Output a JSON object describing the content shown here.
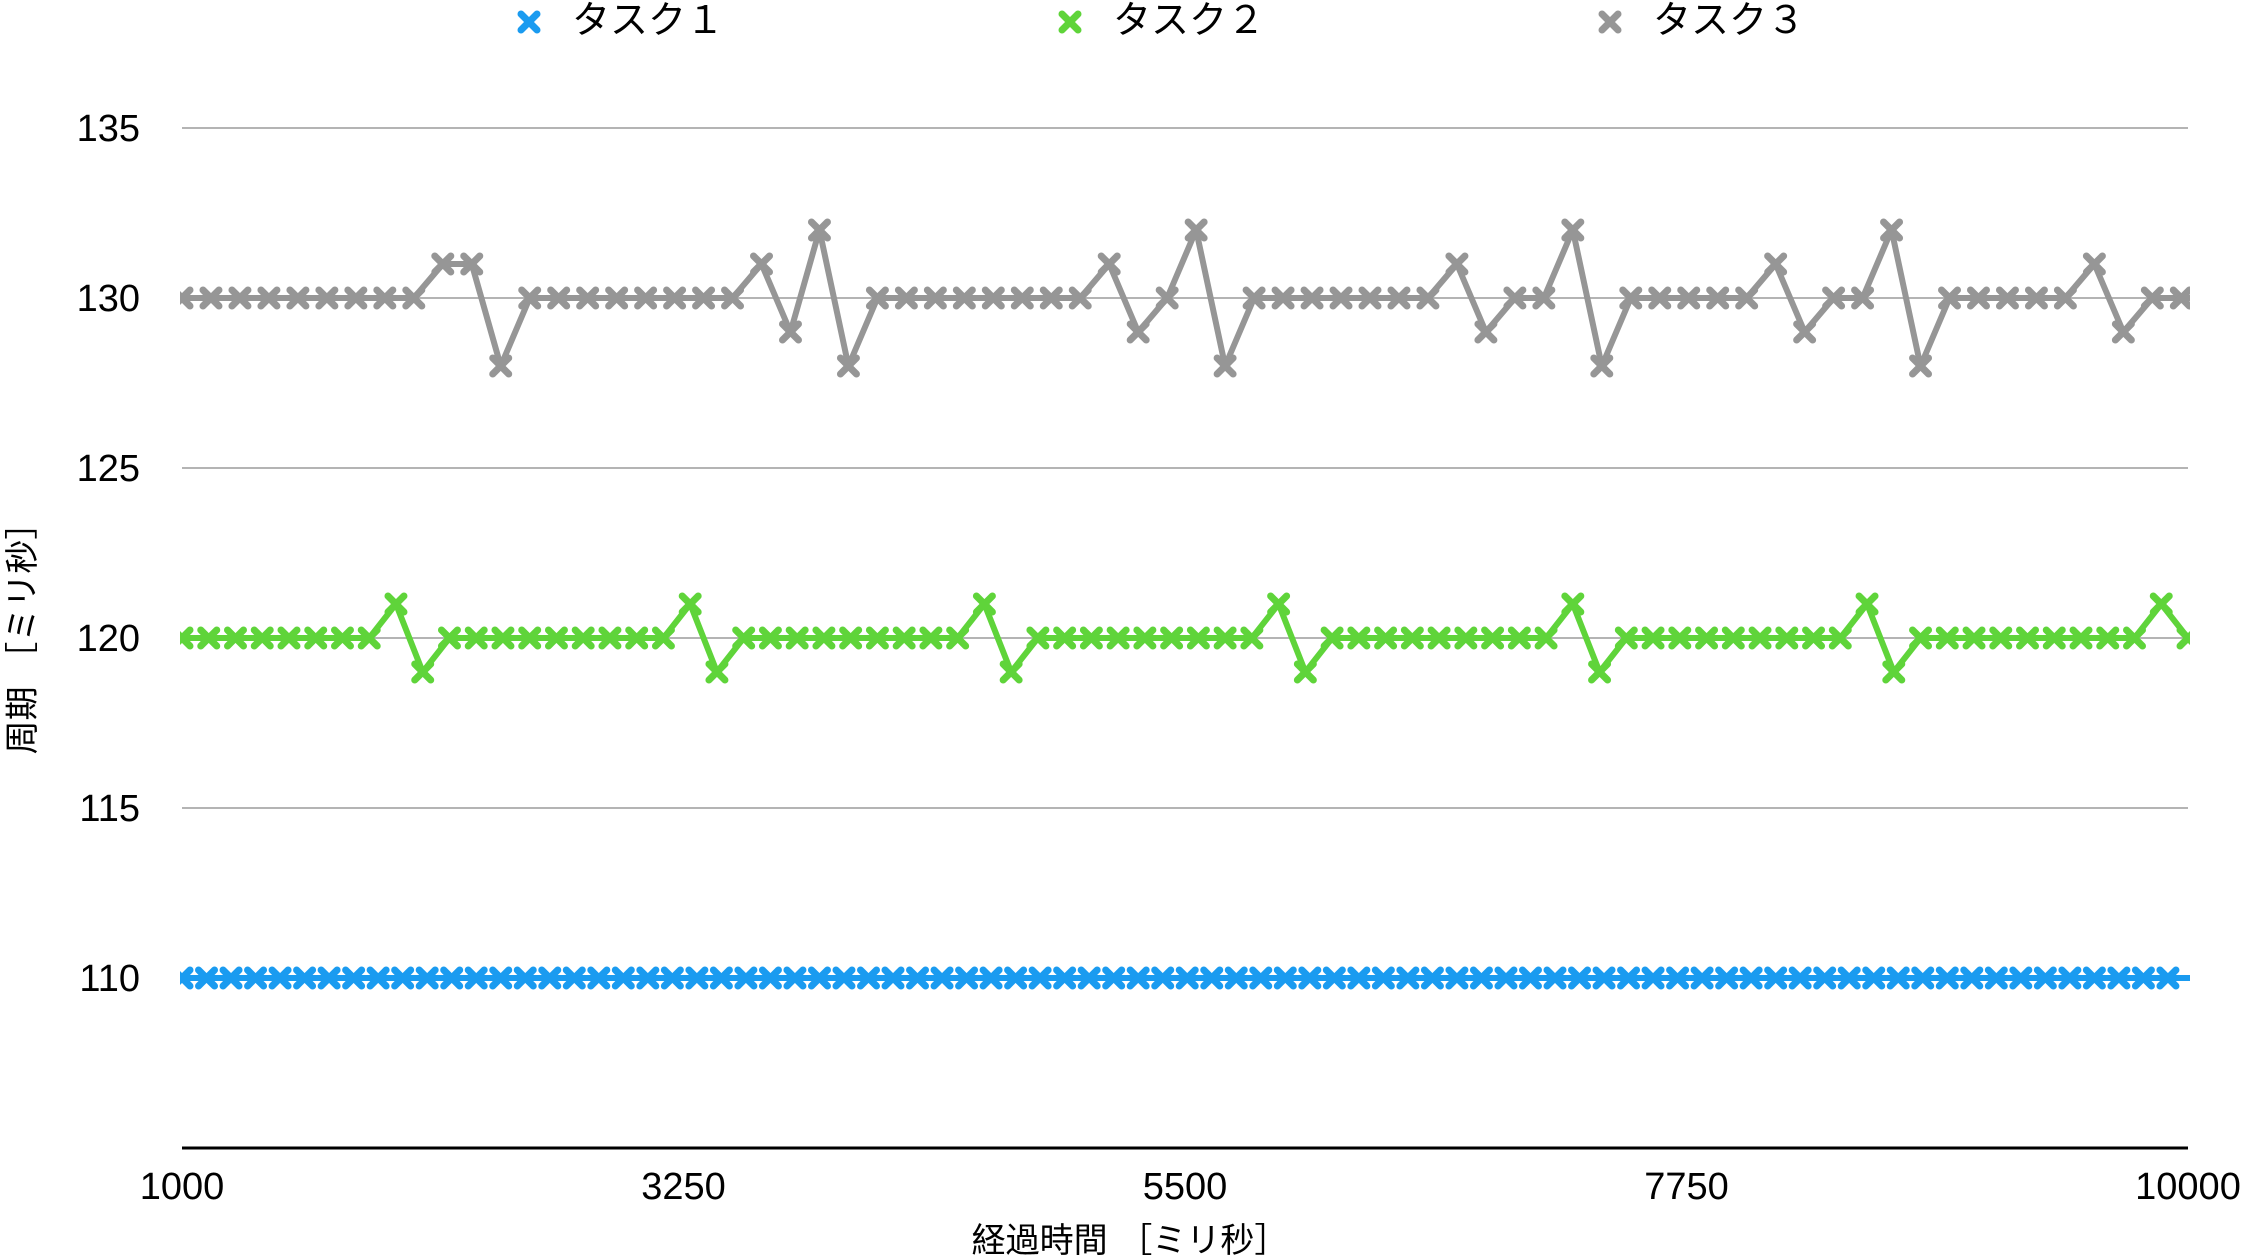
{
  "chart_data": {
    "type": "line",
    "xlabel": "経過時間 ［ミリ秒］",
    "ylabel": "周期 ［ミリ秒］",
    "xlim": [
      1000,
      10000
    ],
    "ylim": [
      105,
      137
    ],
    "x_ticks": [
      1000,
      3250,
      5500,
      7750,
      10000
    ],
    "y_ticks": [
      110,
      115,
      120,
      125,
      130,
      135
    ],
    "grid": true,
    "legend": "top",
    "marker": "x",
    "series": [
      {
        "name": "タスク１",
        "color": "#1a9bf0",
        "x_start": 1000,
        "x_step": 110,
        "values": [
          110,
          110,
          110,
          110,
          110,
          110,
          110,
          110,
          110,
          110,
          110,
          110,
          110,
          110,
          110,
          110,
          110,
          110,
          110,
          110,
          110,
          110,
          110,
          110,
          110,
          110,
          110,
          110,
          110,
          110,
          110,
          110,
          110,
          110,
          110,
          110,
          110,
          110,
          110,
          110,
          110,
          110,
          110,
          110,
          110,
          110,
          110,
          110,
          110,
          110,
          110,
          110,
          110,
          110,
          110,
          110,
          110,
          110,
          110,
          110,
          110,
          110,
          110,
          110,
          110,
          110,
          110,
          110,
          110,
          110,
          110,
          110,
          110,
          110,
          110,
          110,
          110,
          110,
          110,
          110,
          110,
          110,
          110
        ]
      },
      {
        "name": "タスク２",
        "color": "#5fd43a",
        "x_start": 1000,
        "x_step": 120,
        "values": [
          120,
          120,
          120,
          120,
          120,
          120,
          120,
          120,
          121,
          119,
          120,
          120,
          120,
          120,
          120,
          120,
          120,
          120,
          120,
          121,
          119,
          120,
          120,
          120,
          120,
          120,
          120,
          120,
          120,
          120,
          121,
          119,
          120,
          120,
          120,
          120,
          120,
          120,
          120,
          120,
          120,
          121,
          119,
          120,
          120,
          120,
          120,
          120,
          120,
          120,
          120,
          120,
          121,
          119,
          120,
          120,
          120,
          120,
          120,
          120,
          120,
          120,
          120,
          121,
          119,
          120,
          120,
          120,
          120,
          120,
          120,
          120,
          120,
          120,
          121,
          120
        ]
      },
      {
        "name": "タスク３",
        "color": "#969696",
        "x_start": 1000,
        "x_step": 130,
        "values": [
          130,
          130,
          130,
          130,
          130,
          130,
          130,
          130,
          130,
          131,
          131,
          128,
          130,
          130,
          130,
          130,
          130,
          130,
          130,
          130,
          131,
          129,
          132,
          128,
          130,
          130,
          130,
          130,
          130,
          130,
          130,
          130,
          131,
          129,
          130,
          132,
          128,
          130,
          130,
          130,
          130,
          130,
          130,
          130,
          131,
          129,
          130,
          130,
          132,
          128,
          130,
          130,
          130,
          130,
          130,
          131,
          129,
          130,
          130,
          132,
          128,
          130,
          130,
          130,
          130,
          130,
          131,
          129,
          130,
          130,
          130,
          130
        ]
      }
    ]
  }
}
